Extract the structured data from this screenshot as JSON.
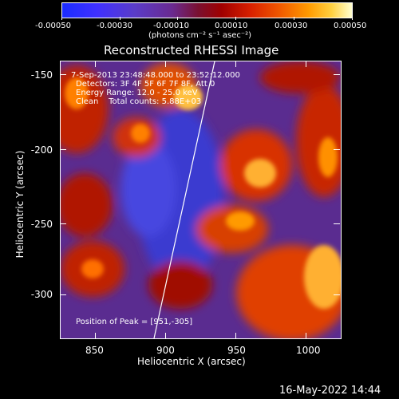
{
  "colorbar": {
    "tick_labels": [
      "-0.00050",
      "-0.00030",
      "-0.00010",
      "0.00010",
      "0.00030",
      "0.00050"
    ],
    "units": "(photons cm⁻² s⁻¹ asec⁻²)"
  },
  "plot": {
    "title": "Reconstructed RHESSI Image",
    "xlabel": "Heliocentric X (arcsec)",
    "ylabel": "Heliocentric Y (arcsec)",
    "x_ticks": [
      "850",
      "900",
      "950",
      "1000"
    ],
    "y_ticks": [
      "-150",
      "-200",
      "-250",
      "-300"
    ],
    "annotations": {
      "time": "7-Sep-2013 23:48:48.000 to 23:52:12.000",
      "detectors": "Detectors: 3F 4F 5F 6F 7F 8F, Att 0",
      "energy": "Energy Range: 12.0 - 25.0 keV",
      "clean": "Clean    Total counts: 5.88E+03",
      "peak": "Position of Peak = [951,-305]"
    }
  },
  "footer": {
    "date": "16-May-2022 14:44"
  },
  "colors": {
    "background": "#000000",
    "axes": "#ffffff"
  }
}
